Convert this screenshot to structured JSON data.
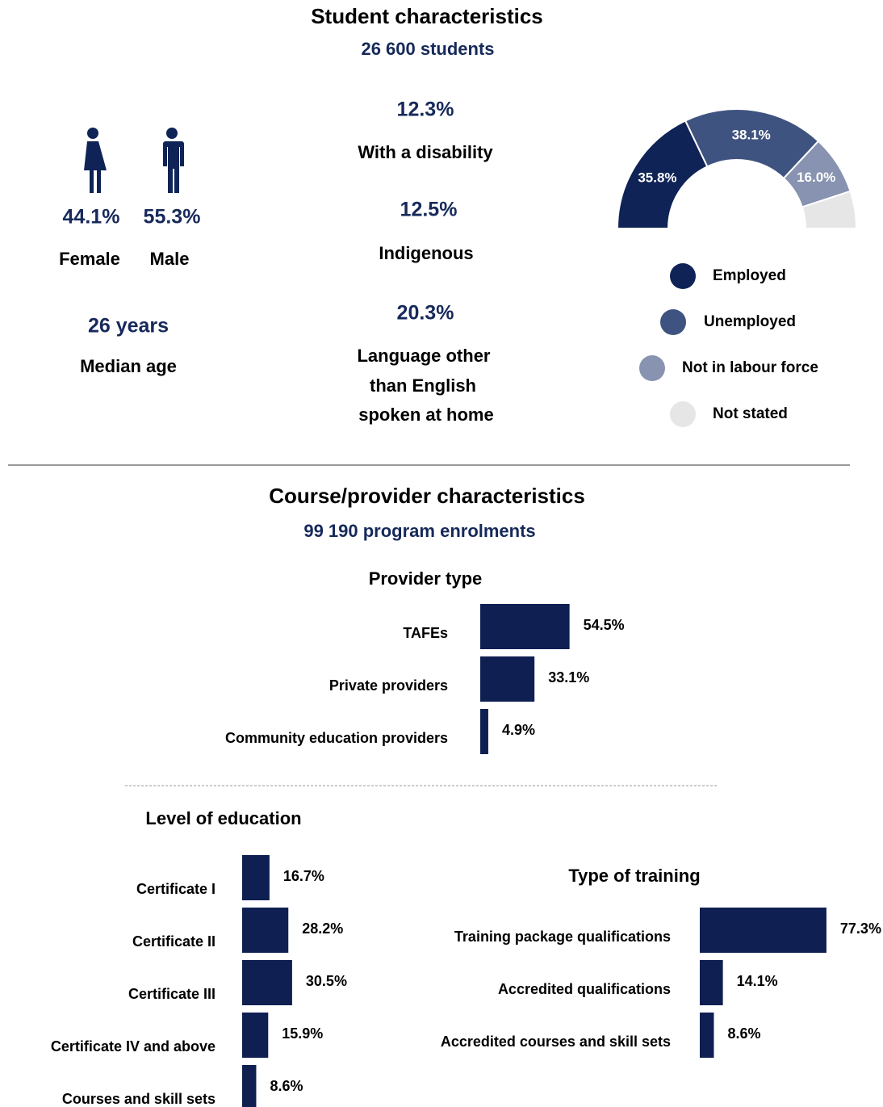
{
  "student": {
    "title": "Student characteristics",
    "subtitle": "26 600 students",
    "female": {
      "value": "44.1%",
      "label": "Female"
    },
    "male": {
      "value": "55.3%",
      "label": "Male"
    },
    "age": {
      "value": "26 years",
      "label": "Median age"
    },
    "disability": {
      "value": "12.3%",
      "label": "With a disability"
    },
    "indigenous": {
      "value": "12.5%",
      "label": "Indigenous"
    },
    "language": {
      "value": "20.3%",
      "label": [
        "Language other",
        "than English",
        "spoken at home"
      ]
    }
  },
  "course": {
    "title": "Course/provider characteristics",
    "subtitle": "99 190 program enrolments"
  },
  "chart_data": [
    {
      "type": "pie",
      "shape": "half-donut",
      "categories": [
        "Employed",
        "Unemployed",
        "Not in labour force",
        "Not stated"
      ],
      "values": [
        35.8,
        38.1,
        16.0,
        10.1
      ],
      "value_labels": [
        "35.8%",
        "38.1%",
        "16.0%",
        null
      ],
      "colors": [
        "#0f2356",
        "#3f5380",
        "#8793b0",
        "#e6e6e6"
      ]
    },
    {
      "type": "hbar",
      "title": "Provider type",
      "categories": [
        "TAFEs",
        "Private providers",
        "Community education providers"
      ],
      "values": [
        54.5,
        33.1,
        4.9
      ],
      "value_labels": [
        "54.5%",
        "33.1%",
        "4.9%"
      ],
      "color": "#0f1f52"
    },
    {
      "type": "hbar",
      "title": "Level of education",
      "categories": [
        "Certificate I",
        "Certificate II",
        "Certificate III",
        "Certificate IV and above",
        "Courses and skill sets"
      ],
      "values": [
        16.7,
        28.2,
        30.5,
        15.9,
        8.6
      ],
      "value_labels": [
        "16.7%",
        "28.2%",
        "30.5%",
        "15.9%",
        "8.6%"
      ],
      "color": "#0f1f52"
    },
    {
      "type": "hbar",
      "title": "Type of training",
      "categories": [
        "Training package qualifications",
        "Accredited qualifications",
        "Accredited courses and skill sets"
      ],
      "values": [
        77.3,
        14.1,
        8.6
      ],
      "value_labels": [
        "77.3%",
        "14.1%",
        "8.6%"
      ],
      "color": "#0f1f52"
    }
  ]
}
